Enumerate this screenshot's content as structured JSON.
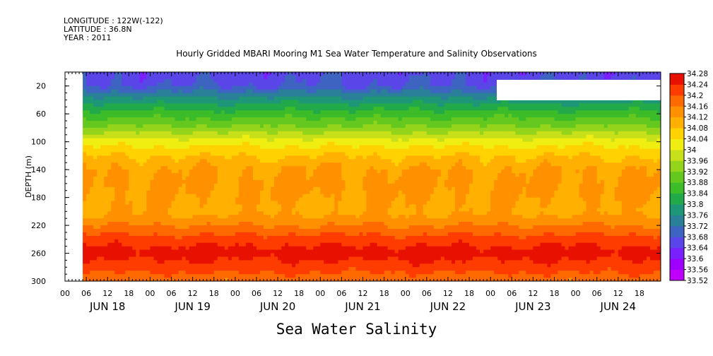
{
  "meta_lines": [
    "LONGITUDE : 122W(-122)",
    "LATITUDE : 36.8N",
    "YEAR : 2011"
  ],
  "chart_data": {
    "type": "heatmap",
    "title": "Hourly Gridded MBARI Mooring M1 Sea Water Temperature and Salinity Observations",
    "xlabel": "Sea Water Salinity",
    "ylabel": "DEPTH (m)",
    "ylim": [
      300,
      0
    ],
    "y_ticks": [
      20,
      60,
      100,
      140,
      180,
      220,
      260,
      300
    ],
    "x_range_hours": [
      0,
      168
    ],
    "x_hour_ticks": [
      "00",
      "06",
      "12",
      "18",
      "00",
      "06",
      "12",
      "18",
      "00",
      "06",
      "12",
      "18",
      "00",
      "06",
      "12",
      "18",
      "00",
      "06",
      "12",
      "18",
      "00",
      "06",
      "12",
      "18",
      "00",
      "06",
      "12",
      "18"
    ],
    "day_labels": [
      "JUN 18",
      "JUN 19",
      "JUN 20",
      "JUN 21",
      "JUN 22",
      "JUN 23",
      "JUN 24"
    ],
    "data_start_hour": 5,
    "colorbar": {
      "levels": [
        "33.52",
        "33.56",
        "33.6",
        "33.64",
        "33.68",
        "33.72",
        "33.76",
        "33.8",
        "33.84",
        "33.88",
        "33.92",
        "33.96",
        "34",
        "34.04",
        "34.08",
        "34.12",
        "34.16",
        "34.2",
        "34.24",
        "34.28"
      ],
      "colors": [
        "#c000ff",
        "#a000ff",
        "#7a20ff",
        "#5a46e8",
        "#3c64c0",
        "#2a8098",
        "#1e9678",
        "#22aa4a",
        "#3cbc28",
        "#64c81e",
        "#94d41a",
        "#c8e01a",
        "#f0ee10",
        "#ffd200",
        "#ffb000",
        "#ff9000",
        "#ff6a00",
        "#ff3c00",
        "#e81000",
        "#c00000"
      ]
    },
    "depth_profile": [
      {
        "depth": 0,
        "value": 33.66
      },
      {
        "depth": 20,
        "value": 33.68
      },
      {
        "depth": 40,
        "value": 33.78
      },
      {
        "depth": 60,
        "value": 33.86
      },
      {
        "depth": 80,
        "value": 33.93
      },
      {
        "depth": 100,
        "value": 34.02
      },
      {
        "depth": 120,
        "value": 34.08
      },
      {
        "depth": 140,
        "value": 34.12
      },
      {
        "depth": 160,
        "value": 34.13
      },
      {
        "depth": 180,
        "value": 34.12
      },
      {
        "depth": 200,
        "value": 34.11
      },
      {
        "depth": 220,
        "value": 34.16
      },
      {
        "depth": 240,
        "value": 34.22
      },
      {
        "depth": 260,
        "value": 34.26
      },
      {
        "depth": 280,
        "value": 34.22
      },
      {
        "depth": 300,
        "value": 34.17
      }
    ]
  }
}
